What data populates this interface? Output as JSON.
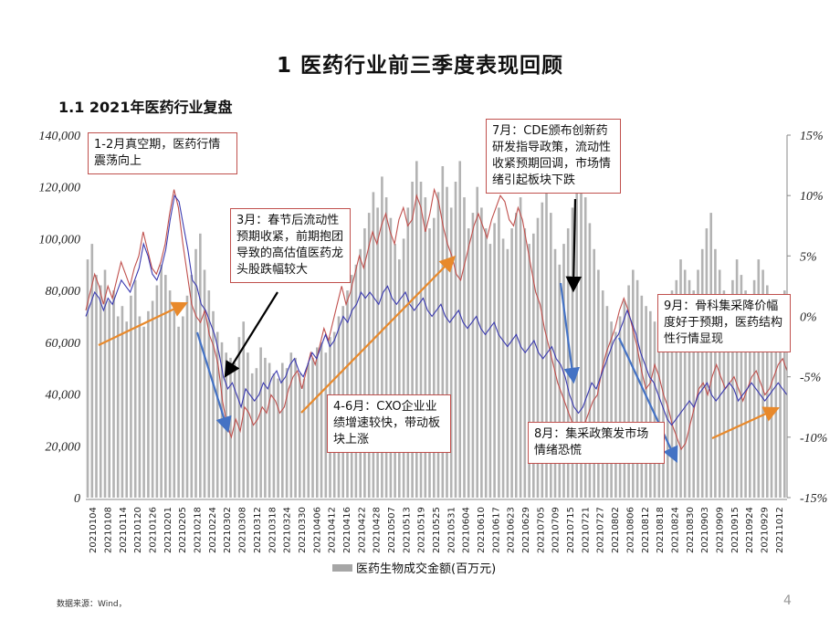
{
  "page": {
    "title": "1 医药行业前三季度表现回顾",
    "subtitle": "1.1 2021年医药行业复盘",
    "source": "数据来源：Wind，",
    "page_number": "4"
  },
  "annotations": [
    {
      "id": "jan-feb",
      "text": "1-2月真空期，医药行情震荡向上"
    },
    {
      "id": "mar",
      "text": "3月：春节后流动性预期收紧，前期抱团导致的高估值医药龙头股跌幅较大"
    },
    {
      "id": "apr-jun",
      "text": "4-6月：CXO企业业绩增速较快，带动板块上涨"
    },
    {
      "id": "jul",
      "text": "7月：CDE颁布创新药研发指导政策，流动性收紧预期回调，市场情绪引起板块下跌"
    },
    {
      "id": "aug",
      "text": "8月：集采政策发市场情绪恐慌"
    },
    {
      "id": "sep",
      "text": "9月：骨科集采降价幅度好于预期，医药结构性行情显现"
    }
  ],
  "chart_data": {
    "type": "bar",
    "legend": [
      "医药生物成交金额(百万元)"
    ],
    "y_left": {
      "min": 0,
      "max": 140000,
      "ticks": [
        "0",
        "20,000",
        "40,000",
        "60,000",
        "80,000",
        "100,000",
        "120,000",
        "140,000"
      ]
    },
    "y_right": {
      "min": -15,
      "max": 15,
      "ticks": [
        "15%",
        "10%",
        "5%",
        "0%",
        "-5%",
        "-10%",
        "-15%"
      ]
    },
    "x_labels": [
      "20210104",
      "20210108",
      "20210114",
      "20210120",
      "20210126",
      "20210201",
      "20210205",
      "20210218",
      "20210224",
      "20210302",
      "20210308",
      "20210312",
      "20210318",
      "20210324",
      "20210330",
      "20210406",
      "20210412",
      "20210416",
      "20210422",
      "20210428",
      "20210507",
      "20210513",
      "20210519",
      "20210525",
      "20210531",
      "20210604",
      "20210610",
      "20210617",
      "20210623",
      "20210629",
      "20210705",
      "20210709",
      "20210715",
      "20210721",
      "20210727",
      "20210802",
      "20210806",
      "20210812",
      "20210818",
      "20210824",
      "20210830",
      "20210903",
      "20210909",
      "20210915",
      "20210924",
      "20210929",
      "20211012"
    ],
    "bars": [
      92000,
      98000,
      86000,
      82000,
      88000,
      76000,
      80000,
      70000,
      74000,
      68000,
      78000,
      84000,
      70000,
      66000,
      72000,
      76000,
      82000,
      90000,
      86000,
      80000,
      74000,
      66000,
      70000,
      78000,
      86000,
      96000,
      102000,
      88000,
      80000,
      72000,
      64000,
      60000,
      56000,
      54000,
      52000,
      62000,
      68000,
      56000,
      48000,
      50000,
      58000,
      54000,
      52000,
      48000,
      46000,
      52000,
      50000,
      56000,
      54000,
      48000,
      46000,
      52000,
      54000,
      58000,
      60000,
      56000,
      62000,
      64000,
      70000,
      74000,
      80000,
      86000,
      90000,
      96000,
      104000,
      110000,
      118000,
      112000,
      124000,
      116000,
      108000,
      98000,
      92000,
      100000,
      112000,
      122000,
      130000,
      122000,
      116000,
      104000,
      108000,
      118000,
      128000,
      120000,
      112000,
      122000,
      130000,
      116000,
      104000,
      110000,
      120000,
      112000,
      104000,
      98000,
      106000,
      112000,
      100000,
      96000,
      104000,
      110000,
      116000,
      104000,
      98000,
      102000,
      108000,
      114000,
      120000,
      110000,
      96000,
      90000,
      98000,
      104000,
      112000,
      122000,
      128000,
      116000,
      106000,
      96000,
      88000,
      80000,
      74000,
      68000,
      64000,
      70000,
      76000,
      82000,
      88000,
      84000,
      78000,
      74000,
      72000,
      68000,
      66000,
      70000,
      76000,
      80000,
      84000,
      92000,
      88000,
      84000,
      80000,
      88000,
      96000,
      104000,
      110000,
      96000,
      88000,
      80000,
      76000,
      84000,
      92000,
      86000,
      80000,
      76000,
      84000,
      92000,
      88000,
      82000,
      78000,
      74000,
      72000,
      80000
    ],
    "red_line": [
      0.5,
      2.0,
      3.5,
      2.5,
      1.0,
      2.5,
      1.5,
      3.0,
      4.5,
      3.5,
      2.5,
      4.0,
      5.0,
      7.0,
      5.5,
      4.0,
      3.5,
      4.5,
      6.0,
      8.5,
      10.5,
      9.0,
      6.0,
      3.5,
      1.0,
      0.0,
      -0.5,
      0.5,
      -1.5,
      -2.5,
      -4.0,
      -7.0,
      -9.0,
      -10.0,
      -8.5,
      -9.5,
      -7.5,
      -8.0,
      -9.0,
      -8.5,
      -7.5,
      -8.0,
      -6.5,
      -7.0,
      -8.0,
      -7.5,
      -6.0,
      -5.0,
      -4.5,
      -6.0,
      -4.5,
      -3.0,
      -4.0,
      -2.5,
      -1.0,
      -2.0,
      -0.5,
      1.0,
      2.5,
      1.0,
      2.0,
      3.5,
      5.0,
      4.0,
      5.5,
      7.0,
      6.0,
      7.5,
      8.5,
      7.0,
      6.0,
      8.0,
      9.0,
      7.5,
      8.0,
      10.0,
      9.0,
      7.0,
      8.5,
      10.5,
      9.5,
      7.5,
      6.0,
      5.0,
      3.5,
      3.0,
      4.5,
      6.0,
      7.5,
      8.5,
      7.5,
      6.5,
      8.0,
      9.0,
      10.0,
      9.5,
      8.0,
      7.5,
      9.0,
      8.0,
      6.0,
      4.0,
      2.0,
      1.0,
      -1.0,
      -2.5,
      -4.0,
      -5.5,
      -6.5,
      -7.5,
      -8.5,
      -9.5,
      -10.5,
      -9.0,
      -8.0,
      -7.0,
      -6.5,
      -4.5,
      -3.0,
      -2.0,
      -1.0,
      0.5,
      1.5,
      0.5,
      -1.0,
      -2.5,
      -4.5,
      -6.0,
      -5.5,
      -4.0,
      -5.0,
      -6.5,
      -7.5,
      -9.0,
      -10.0,
      -11.0,
      -10.5,
      -9.0,
      -7.5,
      -6.0,
      -5.5,
      -6.5,
      -5.0,
      -4.0,
      -5.0,
      -6.0,
      -5.5,
      -5.0,
      -6.0,
      -7.0,
      -6.0,
      -5.0,
      -4.5,
      -5.5,
      -6.5,
      -6.0,
      -5.0,
      -4.0,
      -3.5,
      -4.5
    ],
    "blue_line": [
      0.0,
      1.0,
      2.0,
      1.5,
      0.5,
      1.5,
      1.0,
      2.0,
      3.0,
      2.5,
      2.0,
      3.0,
      4.0,
      6.0,
      5.0,
      3.5,
      3.0,
      4.0,
      5.5,
      8.0,
      10.0,
      9.5,
      7.5,
      5.5,
      3.0,
      2.5,
      1.0,
      0.5,
      -0.5,
      -1.5,
      -3.0,
      -5.0,
      -6.0,
      -5.5,
      -6.5,
      -7.5,
      -6.0,
      -6.5,
      -7.0,
      -6.5,
      -5.5,
      -6.0,
      -5.0,
      -4.5,
      -5.5,
      -5.0,
      -4.0,
      -3.5,
      -4.5,
      -5.0,
      -4.0,
      -3.0,
      -3.5,
      -2.5,
      -1.5,
      -2.5,
      -2.0,
      -1.0,
      0.0,
      -0.5,
      0.5,
      1.0,
      2.0,
      1.5,
      2.0,
      1.5,
      1.0,
      2.0,
      2.5,
      1.5,
      1.0,
      1.5,
      2.0,
      1.0,
      0.5,
      1.0,
      1.5,
      0.5,
      0.0,
      0.5,
      1.0,
      0.0,
      -0.5,
      0.0,
      0.5,
      -0.5,
      -1.0,
      -0.5,
      0.0,
      -1.0,
      -1.5,
      -1.0,
      -0.5,
      -1.5,
      -2.0,
      -2.5,
      -2.0,
      -1.5,
      -2.5,
      -3.0,
      -2.5,
      -2.0,
      -3.0,
      -3.5,
      -3.0,
      -2.5,
      -3.5,
      -4.0,
      -5.0,
      -6.5,
      -7.5,
      -8.0,
      -7.5,
      -6.5,
      -5.5,
      -6.0,
      -5.0,
      -4.0,
      -3.0,
      -2.0,
      -1.5,
      -0.5,
      0.5,
      -0.5,
      -1.5,
      -3.0,
      -4.0,
      -5.0,
      -5.5,
      -6.5,
      -7.5,
      -8.5,
      -9.0,
      -8.5,
      -8.0,
      -7.5,
      -7.0,
      -7.5,
      -6.5,
      -6.0,
      -5.5,
      -6.5,
      -7.0,
      -6.5,
      -6.0,
      -5.5,
      -6.0,
      -7.0,
      -6.5,
      -6.0,
      -5.5,
      -6.0,
      -6.5,
      -7.0,
      -6.5,
      -6.0,
      -5.5,
      -6.0,
      -6.5
    ]
  }
}
